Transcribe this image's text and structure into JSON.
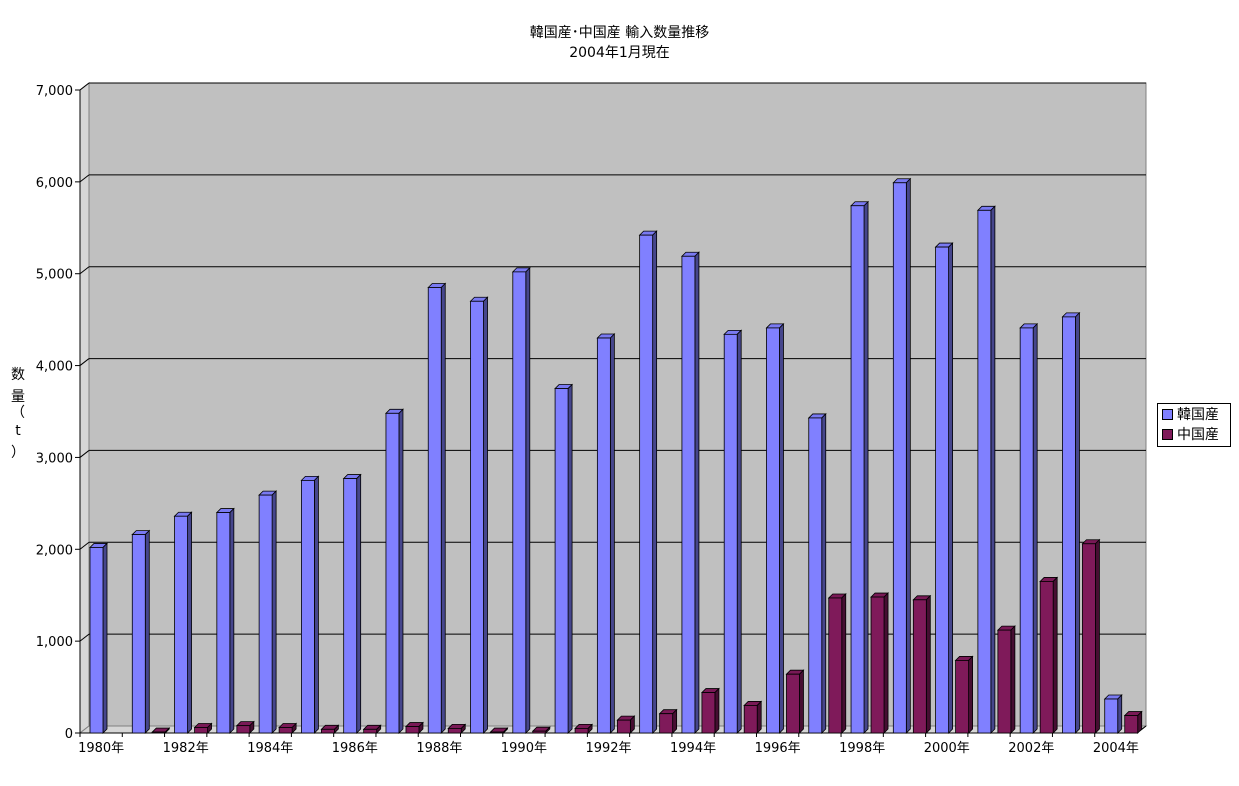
{
  "chart_data": {
    "type": "bar",
    "title": "韓国産･中国産 輸入数量推移",
    "subtitle": "2004年1月現在",
    "ylabel": [
      "数",
      "量",
      "（",
      "t",
      "）"
    ],
    "ylim": [
      0,
      7000
    ],
    "ytick_values": [
      0,
      1000,
      2000,
      3000,
      4000,
      5000,
      6000,
      7000
    ],
    "ytick_labels": [
      "0",
      "1,000",
      "2,000",
      "3,000",
      "4,000",
      "5,000",
      "6,000",
      "7,000"
    ],
    "categories": [
      "1980年",
      "1981年",
      "1982年",
      "1983年",
      "1984年",
      "1985年",
      "1986年",
      "1987年",
      "1988年",
      "1989年",
      "1990年",
      "1991年",
      "1992年",
      "1993年",
      "1994年",
      "1995年",
      "1996年",
      "1997年",
      "1998年",
      "1999年",
      "2000年",
      "2001年",
      "2002年",
      "2003年",
      "2004年"
    ],
    "xtick_labels": [
      "1980年",
      "",
      "1982年",
      "",
      "1984年",
      "",
      "1986年",
      "",
      "1988年",
      "",
      "1990年",
      "",
      "1992年",
      "",
      "1994年",
      "",
      "1996年",
      "",
      "1998年",
      "",
      "2000年",
      "",
      "2002年",
      "",
      "2004年"
    ],
    "series": [
      {
        "name": "韓国産",
        "color": "#8080ff",
        "values": [
          2020,
          2160,
          2360,
          2400,
          2590,
          2750,
          2770,
          3480,
          4850,
          4700,
          5020,
          3750,
          4300,
          5420,
          5190,
          4340,
          4410,
          3430,
          5740,
          5990,
          5290,
          5690,
          4410,
          4530,
          370
        ]
      },
      {
        "name": "中国産",
        "color": "#7f1a5a",
        "values": [
          0,
          10,
          60,
          80,
          60,
          40,
          40,
          70,
          50,
          10,
          20,
          50,
          140,
          210,
          440,
          300,
          640,
          1470,
          1480,
          1450,
          790,
          1120,
          1650,
          2060,
          190
        ]
      }
    ],
    "grid": true,
    "legend": "right"
  }
}
